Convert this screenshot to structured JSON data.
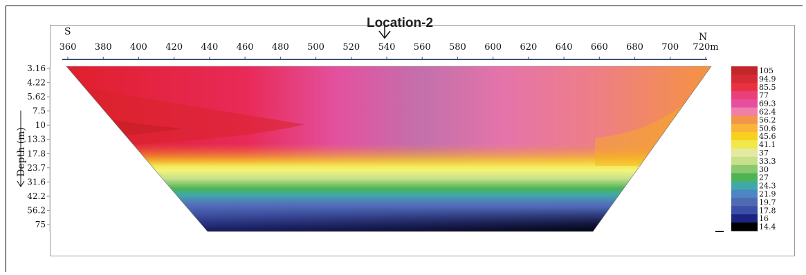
{
  "chart_data": {
    "type": "heatmap",
    "title": "Location-2",
    "profile_ends": {
      "left": "S",
      "right": "N"
    },
    "x_axis": {
      "ticks": [
        "360",
        "380",
        "400",
        "420",
        "440",
        "460",
        "480",
        "500",
        "520",
        "540",
        "560",
        "580",
        "600",
        "620",
        "640",
        "660",
        "680",
        "700",
        "720m"
      ],
      "range": [
        360,
        720
      ],
      "unit": "m"
    },
    "y_axis": {
      "label": "Depth (m)",
      "ticks": [
        "3.16",
        "4.22",
        "5.62",
        "7.5",
        "10",
        "13.3",
        "17.8",
        "23.7",
        "31.6",
        "42.2",
        "56.2",
        "75"
      ],
      "direction": "downward"
    },
    "marker": {
      "x": 542,
      "symbol": "down-arrow"
    },
    "colorbar": {
      "values": [
        "105",
        "94.9",
        "85.5",
        "77",
        "69.3",
        "62.4",
        "56.2",
        "50.6",
        "45.6",
        "41.1",
        "37",
        "33.3",
        "30",
        "27",
        "24.3",
        "21.9",
        "19.7",
        "17.8",
        "16",
        "14.4"
      ],
      "colors": [
        "#c0262a",
        "#d42b34",
        "#e8323f",
        "#ea3f78",
        "#e64fa0",
        "#ef7fa8",
        "#f4954c",
        "#f9b43a",
        "#f7d11d",
        "#f1e84c",
        "#e4e9a2",
        "#c7e08a",
        "#8cc86d",
        "#4db456",
        "#3fa9a8",
        "#4e86c4",
        "#4f6ab1",
        "#3b4fa8",
        "#1b2480",
        "#000000"
      ]
    }
  }
}
